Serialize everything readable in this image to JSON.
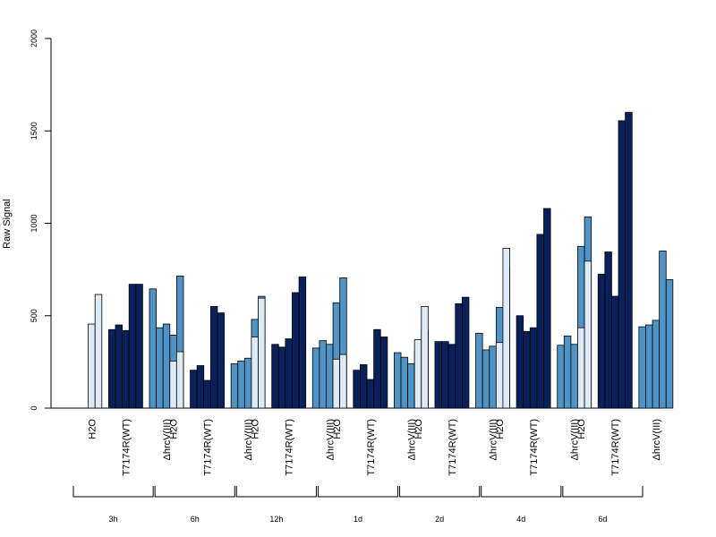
{
  "chart_data": {
    "type": "bar",
    "ylabel": "Raw Signal",
    "ylim": [
      0,
      2000
    ],
    "yticks": [
      0,
      500,
      1000,
      1500,
      2000
    ],
    "colors": {
      "H2O": "#deebf7",
      "T7174R(WT)": "#08215a",
      "ΔhrcV(III)": "#4f94c4"
    },
    "groups": [
      {
        "label": "3h",
        "conditions": [
          {
            "name": "H2O",
            "values": [
              0,
              455,
              615
            ]
          },
          {
            "name": "T7174R(WT)",
            "values": [
              425,
              450,
              420,
              670,
              670
            ]
          },
          {
            "name": "ΔhrcV(III)",
            "values": [
              645,
              435,
              455,
              395,
              715
            ]
          }
        ]
      },
      {
        "label": "6h",
        "conditions": [
          {
            "name": "H2O",
            "values": [
              0,
              255,
              305
            ]
          },
          {
            "name": "T7174R(WT)",
            "values": [
              205,
              230,
              150,
              550,
              515
            ]
          },
          {
            "name": "ΔhrcV(III)",
            "values": [
              240,
              255,
              270,
              480,
              605
            ]
          }
        ]
      },
      {
        "label": "12h",
        "conditions": [
          {
            "name": "H2O",
            "values": [
              0,
              385,
              595
            ]
          },
          {
            "name": "T7174R(WT)",
            "values": [
              345,
              330,
              375,
              625,
              710
            ]
          },
          {
            "name": "ΔhrcV(III)",
            "values": [
              325,
              365,
              345,
              570,
              705
            ]
          }
        ]
      },
      {
        "label": "1d",
        "conditions": [
          {
            "name": "H2O",
            "values": [
              0,
              265,
              290
            ]
          },
          {
            "name": "T7174R(WT)",
            "values": [
              205,
              235,
              155,
              425,
              385
            ]
          },
          {
            "name": "ΔhrcV(III)",
            "values": [
              300,
              275,
              240,
              310,
              420
            ]
          }
        ]
      },
      {
        "label": "2d",
        "conditions": [
          {
            "name": "H2O",
            "values": [
              0,
              370,
              550
            ]
          },
          {
            "name": "T7174R(WT)",
            "values": [
              360,
              360,
              345,
              565,
              600
            ]
          },
          {
            "name": "ΔhrcV(III)",
            "values": [
              405,
              315,
              335,
              545,
              760
            ]
          }
        ]
      },
      {
        "label": "4d",
        "conditions": [
          {
            "name": "H2O",
            "values": [
              0,
              355,
              865
            ]
          },
          {
            "name": "T7174R(WT)",
            "values": [
              500,
              415,
              435,
              940,
              1080
            ]
          },
          {
            "name": "ΔhrcV(III)",
            "values": [
              340,
              390,
              345,
              875,
              1035
            ]
          }
        ]
      },
      {
        "label": "6d",
        "conditions": [
          {
            "name": "H2O",
            "values": [
              0,
              435,
              795
            ]
          },
          {
            "name": "T7174R(WT)",
            "values": [
              725,
              845,
              605,
              1555,
              1600
            ]
          },
          {
            "name": "ΔhrcV(III)",
            "values": [
              440,
              450,
              475,
              850,
              695
            ]
          }
        ]
      }
    ]
  }
}
